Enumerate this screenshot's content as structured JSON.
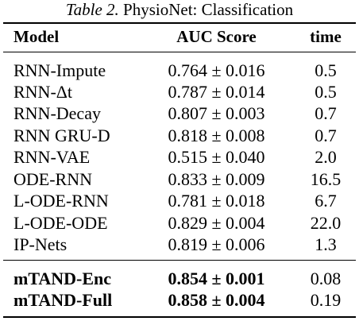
{
  "caption": {
    "label": "Table 2.",
    "title": "PhysioNet: Classification"
  },
  "columns": [
    "Model",
    "AUC Score",
    "time"
  ],
  "rows": [
    {
      "model": "RNN-Impute",
      "auc": "0.764 ± 0.016",
      "time": "0.5"
    },
    {
      "model": "RNN-Δt",
      "auc": "0.787 ± 0.014",
      "time": "0.5"
    },
    {
      "model": "RNN-Decay",
      "auc": "0.807 ± 0.003",
      "time": "0.7"
    },
    {
      "model": "RNN GRU-D",
      "auc": "0.818 ± 0.008",
      "time": "0.7"
    },
    {
      "model": "RNN-VAE",
      "auc": "0.515 ± 0.040",
      "time": "2.0"
    },
    {
      "model": "ODE-RNN",
      "auc": "0.833 ± 0.009",
      "time": "16.5"
    },
    {
      "model": "L-ODE-RNN",
      "auc": "0.781 ± 0.018",
      "time": "6.7"
    },
    {
      "model": "L-ODE-ODE",
      "auc": "0.829 ± 0.004",
      "time": "22.0"
    },
    {
      "model": "IP-Nets",
      "auc": "0.819 ± 0.006",
      "time": "1.3"
    }
  ],
  "proposed_rows": [
    {
      "model": "mTAND-Enc",
      "auc": "0.854 ± 0.001",
      "time": "0.08"
    },
    {
      "model": "mTAND-Full",
      "auc": "0.858 ± 0.004",
      "time": "0.19"
    }
  ]
}
